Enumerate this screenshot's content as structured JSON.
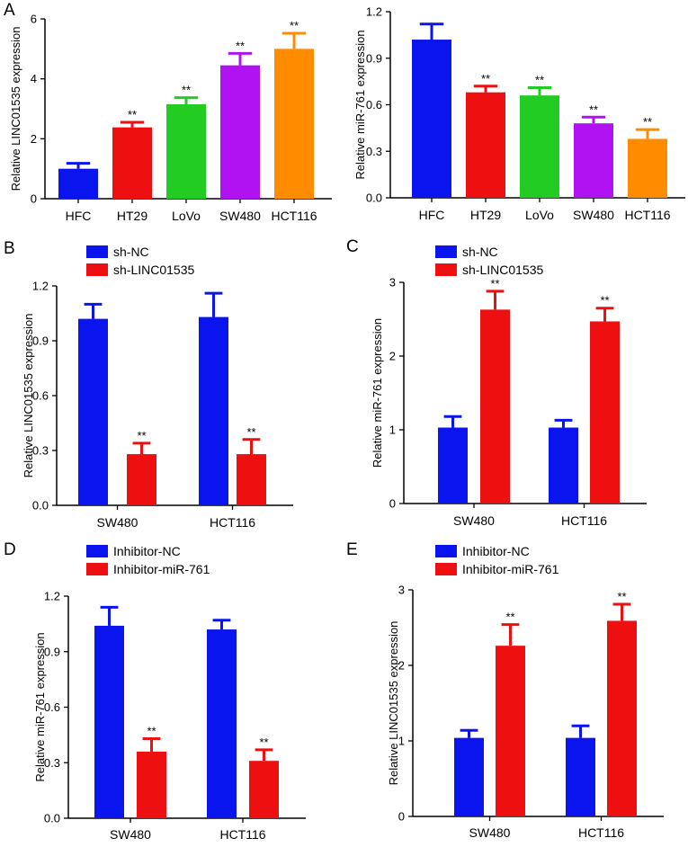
{
  "chart_data": [
    {
      "panel": "A",
      "type": "bar",
      "categories": [
        "HFC",
        "HT29",
        "LoVo",
        "SW480",
        "HCT116"
      ],
      "values": [
        1.0,
        2.38,
        3.15,
        4.45,
        5.0
      ],
      "errors": [
        0.18,
        0.17,
        0.22,
        0.4,
        0.52
      ],
      "significance": [
        "",
        "**",
        "**",
        "**",
        "**"
      ],
      "colors": [
        "#0a14ee",
        "#ee1010",
        "#22cc22",
        "#b012f2",
        "#ff8c00"
      ],
      "ylabel": "Relative LINC01535 expression",
      "xlabel": "",
      "ylim": [
        0,
        6
      ],
      "yticks": [
        "0",
        "2",
        "4",
        "6"
      ],
      "grid": false
    },
    {
      "panel": "",
      "type": "bar",
      "categories": [
        "HFC",
        "HT29",
        "LoVo",
        "SW480",
        "HCT116"
      ],
      "values": [
        1.02,
        0.68,
        0.66,
        0.48,
        0.38
      ],
      "errors": [
        0.1,
        0.04,
        0.05,
        0.04,
        0.06
      ],
      "significance": [
        "",
        "**",
        "**",
        "**",
        "**"
      ],
      "colors": [
        "#0a14ee",
        "#ee1010",
        "#22cc22",
        "#b012f2",
        "#ff8c00"
      ],
      "ylabel": "Relative miR-761 expression",
      "xlabel": "",
      "ylim": [
        0,
        1.2
      ],
      "yticks": [
        "0.0",
        "0.3",
        "0.6",
        "0.9",
        "1.2"
      ],
      "grid": false
    },
    {
      "panel": "B",
      "type": "bar",
      "categories": [
        "SW480",
        "HCT116"
      ],
      "series": [
        {
          "name": "sh-NC",
          "color": "#0a14ee",
          "values": [
            1.02,
            1.03
          ],
          "errors": [
            0.08,
            0.13
          ],
          "significance": [
            "",
            ""
          ]
        },
        {
          "name": "sh-LINC01535",
          "color": "#ee1010",
          "values": [
            0.28,
            0.28
          ],
          "errors": [
            0.06,
            0.08
          ],
          "significance": [
            "**",
            "**"
          ]
        }
      ],
      "ylabel": "Relative LINC01535 expression",
      "ylim": [
        0,
        1.2
      ],
      "yticks": [
        "0.0",
        "0.3",
        "0.6",
        "0.9",
        "1.2"
      ],
      "legend_position": "top-left"
    },
    {
      "panel": "C",
      "type": "bar",
      "categories": [
        "SW480",
        "HCT116"
      ],
      "series": [
        {
          "name": "sh-NC",
          "color": "#0a14ee",
          "values": [
            1.03,
            1.03
          ],
          "errors": [
            0.15,
            0.1
          ],
          "significance": [
            "",
            ""
          ]
        },
        {
          "name": "sh-LINC01535",
          "color": "#ee1010",
          "values": [
            2.63,
            2.47
          ],
          "errors": [
            0.25,
            0.18
          ],
          "significance": [
            "**",
            "**"
          ]
        }
      ],
      "ylabel": "Relative miR-761 expression",
      "ylim": [
        0,
        3
      ],
      "yticks": [
        "0",
        "1",
        "2",
        "3"
      ],
      "legend_position": "top-left"
    },
    {
      "panel": "D",
      "type": "bar",
      "categories": [
        "SW480",
        "HCT116"
      ],
      "series": [
        {
          "name": "Inhibitor-NC",
          "color": "#0a14ee",
          "values": [
            1.04,
            1.02
          ],
          "errors": [
            0.1,
            0.05
          ],
          "significance": [
            "",
            ""
          ]
        },
        {
          "name": "Inhibitor-miR-761",
          "color": "#ee1010",
          "values": [
            0.36,
            0.31
          ],
          "errors": [
            0.07,
            0.06
          ],
          "significance": [
            "**",
            "**"
          ]
        }
      ],
      "ylabel": "Relative miR-761 expression",
      "ylim": [
        0,
        1.2
      ],
      "yticks": [
        "0.0",
        "0.3",
        "0.6",
        "0.9",
        "1.2"
      ],
      "legend_position": "top-left"
    },
    {
      "panel": "E",
      "type": "bar",
      "categories": [
        "SW480",
        "HCT116"
      ],
      "series": [
        {
          "name": "Inhibitor-NC",
          "color": "#0a14ee",
          "values": [
            1.04,
            1.04
          ],
          "errors": [
            0.1,
            0.16
          ],
          "significance": [
            "",
            ""
          ]
        },
        {
          "name": "Inhibitor-miR-761",
          "color": "#ee1010",
          "values": [
            2.26,
            2.59
          ],
          "errors": [
            0.28,
            0.22
          ],
          "significance": [
            "**",
            "**"
          ]
        }
      ],
      "ylabel": "Relative LINC01535 expression",
      "ylim": [
        0,
        3
      ],
      "yticks": [
        "0",
        "1",
        "2",
        "3"
      ],
      "legend_position": "top-left"
    }
  ]
}
